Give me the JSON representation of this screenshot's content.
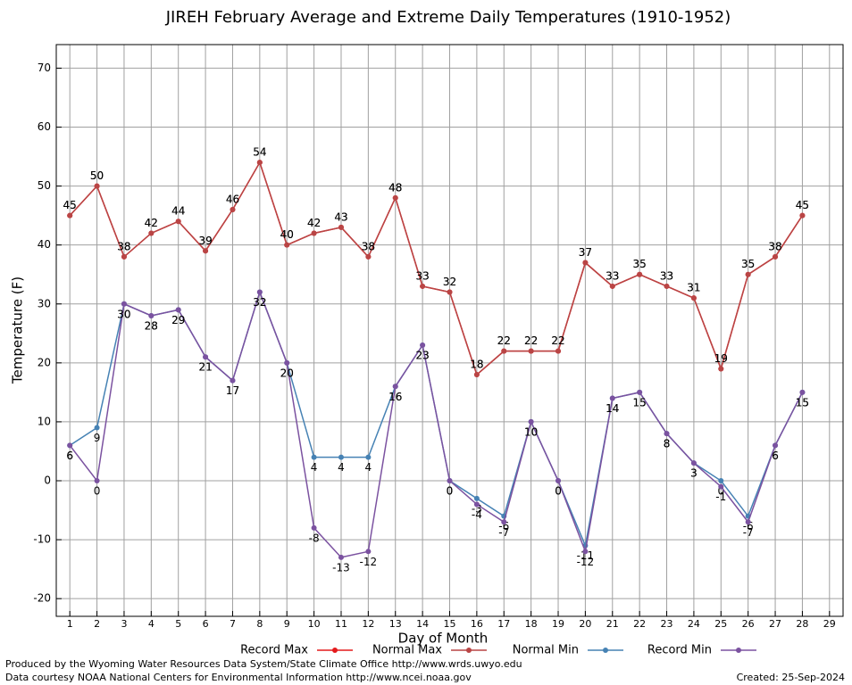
{
  "chart_data": {
    "type": "line",
    "title": "JIREH February Average and Extreme Daily Temperatures (1910-1952)",
    "xlabel": "Day of Month",
    "ylabel": "Temperature (F)",
    "x": [
      1,
      2,
      3,
      4,
      5,
      6,
      7,
      8,
      9,
      10,
      11,
      12,
      13,
      14,
      15,
      16,
      17,
      18,
      19,
      20,
      21,
      22,
      23,
      24,
      25,
      26,
      27,
      28
    ],
    "xlim": [
      0.5,
      29.5
    ],
    "xticks": [
      1,
      2,
      3,
      4,
      5,
      6,
      7,
      8,
      9,
      10,
      11,
      12,
      13,
      14,
      15,
      16,
      17,
      18,
      19,
      20,
      21,
      22,
      23,
      24,
      25,
      26,
      27,
      28,
      29
    ],
    "ylim": [
      -23,
      74
    ],
    "yticks": [
      -20,
      -10,
      0,
      10,
      20,
      30,
      40,
      50,
      60,
      70
    ],
    "grid": true,
    "legend": "bottom",
    "series": [
      {
        "name": "Record Max",
        "color": "#e41a1c",
        "label_side": "above",
        "values": [
          45,
          50,
          38,
          42,
          44,
          39,
          46,
          54,
          40,
          42,
          43,
          38,
          48,
          33,
          32,
          18,
          22,
          22,
          22,
          37,
          33,
          35,
          33,
          31,
          19,
          35,
          38,
          45
        ]
      },
      {
        "name": "Normal Max",
        "color": "#b94545",
        "label_side": "above",
        "values": [
          45,
          50,
          38,
          42,
          44,
          39,
          46,
          54,
          40,
          42,
          43,
          38,
          48,
          33,
          32,
          18,
          22,
          22,
          22,
          37,
          33,
          35,
          33,
          31,
          19,
          35,
          38,
          45
        ]
      },
      {
        "name": "Normal Min",
        "color": "#4682b4",
        "label_side": "below",
        "values": [
          6,
          9,
          30,
          28,
          29,
          21,
          17,
          32,
          20,
          4,
          4,
          4,
          16,
          23,
          0,
          -3,
          -6,
          10,
          0,
          -11,
          14,
          15,
          8,
          3,
          0,
          -6,
          6,
          15
        ]
      },
      {
        "name": "Record Min",
        "color": "#7b52a0",
        "label_side": "below",
        "values": [
          6,
          0,
          30,
          28,
          29,
          21,
          17,
          32,
          20,
          -8,
          -13,
          -12,
          16,
          23,
          0,
          -4,
          -7,
          10,
          0,
          -12,
          14,
          15,
          8,
          3,
          -1,
          -7,
          6,
          15
        ]
      }
    ],
    "footer_left": [
      "Produced by the Wyoming Water Resources Data System/State Climate Office http://www.wrds.uwyo.edu",
      "Data courtesy NOAA National Centers for Environmental Information http://www.ncei.noaa.gov"
    ],
    "footer_right": "Created:  25-Sep-2024"
  }
}
